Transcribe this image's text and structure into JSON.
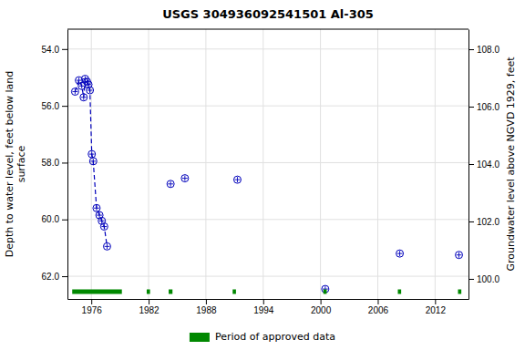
{
  "chart_data": {
    "type": "line",
    "title": "USGS 304936092541501 Al-305",
    "ylabel": "Depth to water level, feet below land\nsurface",
    "y2label": "Groundwater level above NGVD 1929, feet",
    "x": [
      1974.3,
      1974.7,
      1975.0,
      1975.2,
      1975.35,
      1975.55,
      1975.7,
      1975.85,
      1976.05,
      1976.2,
      1976.55,
      1976.85,
      1977.1,
      1977.35,
      1977.65,
      1984.3,
      1985.8,
      1991.3,
      2000.5,
      2008.3,
      2014.5
    ],
    "series": [
      {
        "type": "line",
        "line_style": "dashed",
        "color": "#0000bb",
        "values": [
          55.5,
          55.1,
          55.3,
          55.7,
          55.05,
          55.15,
          55.25,
          55.45,
          57.7,
          57.95,
          59.6,
          59.85,
          60.05,
          60.25,
          60.95,
          null,
          null,
          null,
          null,
          null,
          null
        ]
      },
      {
        "type": "scatter",
        "marker": "circle-cross",
        "color": "#0000bb",
        "values": [
          55.5,
          55.1,
          55.3,
          55.7,
          55.05,
          55.15,
          55.25,
          55.45,
          57.7,
          57.95,
          59.6,
          59.85,
          60.05,
          60.25,
          60.95,
          58.75,
          58.55,
          58.6,
          62.45,
          61.2,
          61.25
        ]
      }
    ],
    "xlim": [
      1973.5,
      2015.5
    ],
    "xticks": [
      1976,
      1982,
      1988,
      1994,
      2000,
      2006,
      2012
    ],
    "ylim": [
      62.8,
      53.3
    ],
    "yticks": [
      {
        "value": 54.0,
        "label": "54.0"
      },
      {
        "value": 56.0,
        "label": "56.0"
      },
      {
        "value": 58.0,
        "label": "58.0"
      },
      {
        "value": 60.0,
        "label": "60.0"
      },
      {
        "value": 62.0,
        "label": "62.0"
      }
    ],
    "y2lim": [
      99.3,
      108.7
    ],
    "y2ticks": [
      {
        "value": 108.0,
        "label": "108.0"
      },
      {
        "value": 106.0,
        "label": "106.0"
      },
      {
        "value": 104.0,
        "label": "104.0"
      },
      {
        "value": 102.0,
        "label": "102.0"
      },
      {
        "value": 100.0,
        "label": "100.0"
      }
    ],
    "approved": {
      "name": "Period of approved data",
      "color": "#008800",
      "ranges": [
        [
          1974.0,
          1979.2
        ],
        [
          1981.8,
          1982.15
        ],
        [
          1984.1,
          1984.5
        ],
        [
          1990.8,
          1991.15
        ],
        [
          2000.3,
          2000.65
        ],
        [
          2008.1,
          2008.45
        ],
        [
          2014.4,
          2014.75
        ]
      ]
    },
    "grid": true,
    "legend": "bottom"
  }
}
